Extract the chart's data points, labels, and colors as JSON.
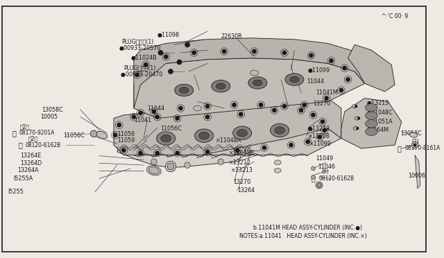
{
  "bg": "#ede9e3",
  "fg": "#1a1a1a",
  "white": "#ffffff",
  "notes1": "NOTES:a.11041   HEAD ASSY-CYLINDER (INC.×)",
  "notes2": "        b.11041M HEAD ASSY-CYLINDER (INC.●)",
  "footer": "^·’C 00· 9",
  "font_main": 5.8,
  "font_notes": 5.6,
  "font_footer": 5.5
}
